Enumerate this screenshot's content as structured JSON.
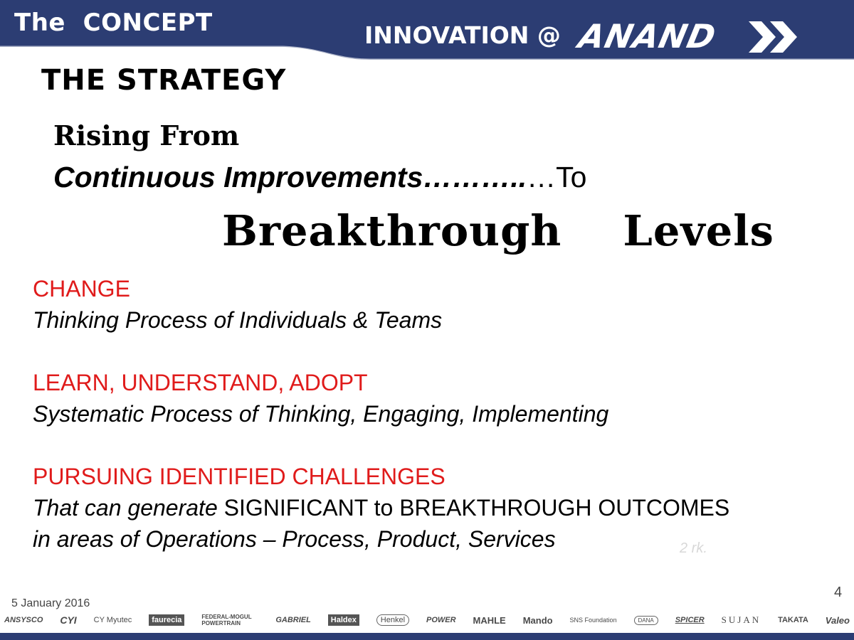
{
  "header": {
    "section_title": "The  CONCEPT",
    "innovation_label": "INNOVATION @",
    "brand_name": "ANAND",
    "brand_color": "#2c3d73"
  },
  "main": {
    "heading": "THE STRATEGY",
    "rising_from": "Rising From",
    "continuous": "Continuous Improvements",
    "dots_bold": "………..",
    "dots_to": "…To",
    "breakthrough": "Breakthrough    Levels"
  },
  "sections": [
    {
      "title": "CHANGE",
      "body": "Thinking Process of Individuals & Teams"
    },
    {
      "title": "LEARN, UNDERSTAND, ADOPT",
      "body": "Systematic Process of Thinking, Engaging, Implementing"
    },
    {
      "title": "PURSUING  IDENTIFIED  CHALLENGES",
      "body_parts": [
        "That can generate",
        " SIGNIFICANT  to BREAKTHROUGH OUTCOMES",
        " in areas of Operations – Process, Product, Services"
      ]
    }
  ],
  "footer": {
    "date": "5 January 2016",
    "page_number": "4",
    "faint_mark": "2 rk.",
    "logos": [
      "ANSYSCO",
      "CYI",
      "CY Myutec",
      "faurecia",
      "FEDERAL-MOGUL POWERTRAIN",
      "GABRIEL",
      "Haldex",
      "Henkel",
      "POWER",
      "MAHLE",
      "Mando",
      "SNS Foundation",
      "DANA",
      "SPICER",
      "SUJAN",
      "TAKATA",
      "Valeo"
    ]
  }
}
